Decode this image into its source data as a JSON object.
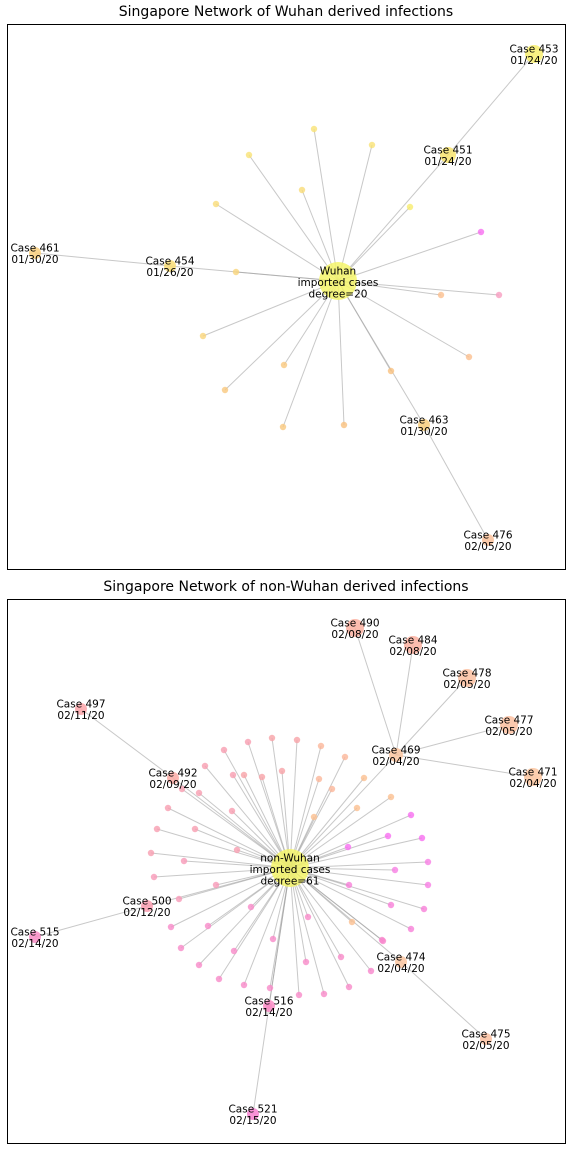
{
  "panels": [
    {
      "title": "Singapore Network of Wuhan derived infections",
      "center": {
        "lines": [
          "Wuhan",
          "imported cases",
          "degree=20"
        ],
        "color": "#f5f56a"
      },
      "labeled_nodes": [
        {
          "id": "c453",
          "lines": [
            "Case 453",
            "01/24/20"
          ],
          "color": "#f8ef6f"
        },
        {
          "id": "c451",
          "lines": [
            "Case 451",
            "01/24/20"
          ],
          "color": "#f8e46e"
        },
        {
          "id": "c461",
          "lines": [
            "Case 461",
            "01/30/20"
          ],
          "color": "#f9cf7c"
        },
        {
          "id": "c454",
          "lines": [
            "Case 454",
            "01/26/20"
          ],
          "color": "#f9dd74"
        },
        {
          "id": "c463",
          "lines": [
            "Case 463",
            "01/30/20"
          ],
          "color": "#f9cf7c"
        },
        {
          "id": "c476",
          "lines": [
            "Case 476",
            "02/05/20"
          ],
          "color": "#fac19a"
        }
      ]
    },
    {
      "title": "Singapore Network of non-Wuhan derived infections",
      "center": {
        "lines": [
          "non-Wuhan",
          "imported cases",
          "degree=61"
        ],
        "color": "#f5f56a"
      },
      "labeled_nodes": [
        {
          "id": "c490",
          "lines": [
            "Case 490",
            "02/08/20"
          ],
          "color": "#fbb0a0"
        },
        {
          "id": "c484",
          "lines": [
            "Case 484",
            "02/08/20"
          ],
          "color": "#fbb0a0"
        },
        {
          "id": "c478",
          "lines": [
            "Case 478",
            "02/05/20"
          ],
          "color": "#fbc0a0"
        },
        {
          "id": "c477",
          "lines": [
            "Case 477",
            "02/05/20"
          ],
          "color": "#fbc0a0"
        },
        {
          "id": "c471",
          "lines": [
            "Case 471",
            "02/04/20"
          ],
          "color": "#fbc6a0"
        },
        {
          "id": "c469",
          "lines": [
            "Case 469",
            "02/04/20"
          ],
          "color": "#fbc6a0"
        },
        {
          "id": "c497",
          "lines": [
            "Case 497",
            "02/11/20"
          ],
          "color": "#fba3a8"
        },
        {
          "id": "c492",
          "lines": [
            "Case 492",
            "02/09/20"
          ],
          "color": "#fbaaa5"
        },
        {
          "id": "c500",
          "lines": [
            "Case 500",
            "02/12/20"
          ],
          "color": "#fb9cb0"
        },
        {
          "id": "c515",
          "lines": [
            "Case 515",
            "02/14/20"
          ],
          "color": "#f98cc4"
        },
        {
          "id": "c474",
          "lines": [
            "Case 474",
            "02/04/20"
          ],
          "color": "#fbc6a0"
        },
        {
          "id": "c475",
          "lines": [
            "Case 475",
            "02/05/20"
          ],
          "color": "#fbc0a0"
        },
        {
          "id": "c516",
          "lines": [
            "Case 516",
            "02/14/20"
          ],
          "color": "#f98cc4"
        },
        {
          "id": "c521",
          "lines": [
            "Case 521",
            "02/15/20"
          ],
          "color": "#f780d0"
        }
      ]
    }
  ]
}
